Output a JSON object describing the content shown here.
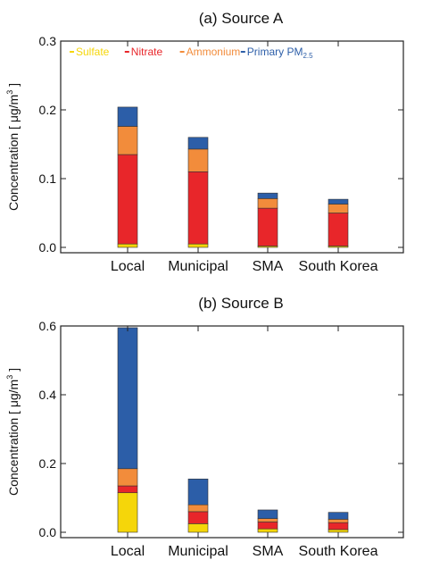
{
  "chart_data": [
    {
      "type": "bar",
      "stacked": true,
      "title": "(a) Source A",
      "ylabel": "Concentration [ μg/m³ ]",
      "ylabel_prefix": "Concentration [ μg/m",
      "ylabel_sup": "3",
      "ylabel_suffix": " ]",
      "ylim": [
        0,
        0.3
      ],
      "yticks": [
        "0.0",
        "0.1",
        "0.2",
        "0.3"
      ],
      "ytick_values": [
        0,
        0.1,
        0.2,
        0.3
      ],
      "categories": [
        "Local",
        "Municipal",
        "SMA",
        "South Korea"
      ],
      "series": [
        {
          "name": "Sulfate",
          "color": "#f5d60a",
          "values": [
            0.005,
            0.005,
            0.002,
            0.002
          ]
        },
        {
          "name": "Nitrate",
          "color": "#e8262a",
          "values": [
            0.13,
            0.105,
            0.055,
            0.048
          ]
        },
        {
          "name": "Ammonium",
          "color": "#f28c3b",
          "values": [
            0.041,
            0.033,
            0.014,
            0.013
          ]
        },
        {
          "name": "Primary PM2.5",
          "color": "#2c5ea8",
          "values": [
            0.028,
            0.017,
            0.008,
            0.007
          ]
        }
      ],
      "legend": {
        "position": "top-left",
        "items": [
          {
            "label": "Sulfate",
            "color": "#f5d60a"
          },
          {
            "label": "Nitrate",
            "color": "#e8262a"
          },
          {
            "label": "Ammonium",
            "color": "#f28c3b"
          },
          {
            "label": "Primary PM",
            "sub": "2.5",
            "color": "#2c5ea8"
          }
        ]
      }
    },
    {
      "type": "bar",
      "stacked": true,
      "title": "(b) Source B",
      "ylabel": "Concentration [ μg/m³ ]",
      "ylabel_prefix": "Concentration [ μg/m",
      "ylabel_sup": "3",
      "ylabel_suffix": " ]",
      "ylim": [
        0,
        0.6
      ],
      "yticks": [
        "0.0",
        "0.2",
        "0.4",
        "0.6"
      ],
      "ytick_values": [
        0,
        0.2,
        0.4,
        0.6
      ],
      "categories": [
        "Local",
        "Municipal",
        "SMA",
        "South Korea"
      ],
      "series": [
        {
          "name": "Sulfate",
          "color": "#f5d60a",
          "values": [
            0.115,
            0.025,
            0.01,
            0.008
          ]
        },
        {
          "name": "Nitrate",
          "color": "#e8262a",
          "values": [
            0.02,
            0.035,
            0.02,
            0.02
          ]
        },
        {
          "name": "Ammonium",
          "color": "#f28c3b",
          "values": [
            0.05,
            0.02,
            0.01,
            0.01
          ]
        },
        {
          "name": "Primary PM2.5",
          "color": "#2c5ea8",
          "values": [
            0.41,
            0.075,
            0.025,
            0.02
          ]
        }
      ]
    }
  ]
}
